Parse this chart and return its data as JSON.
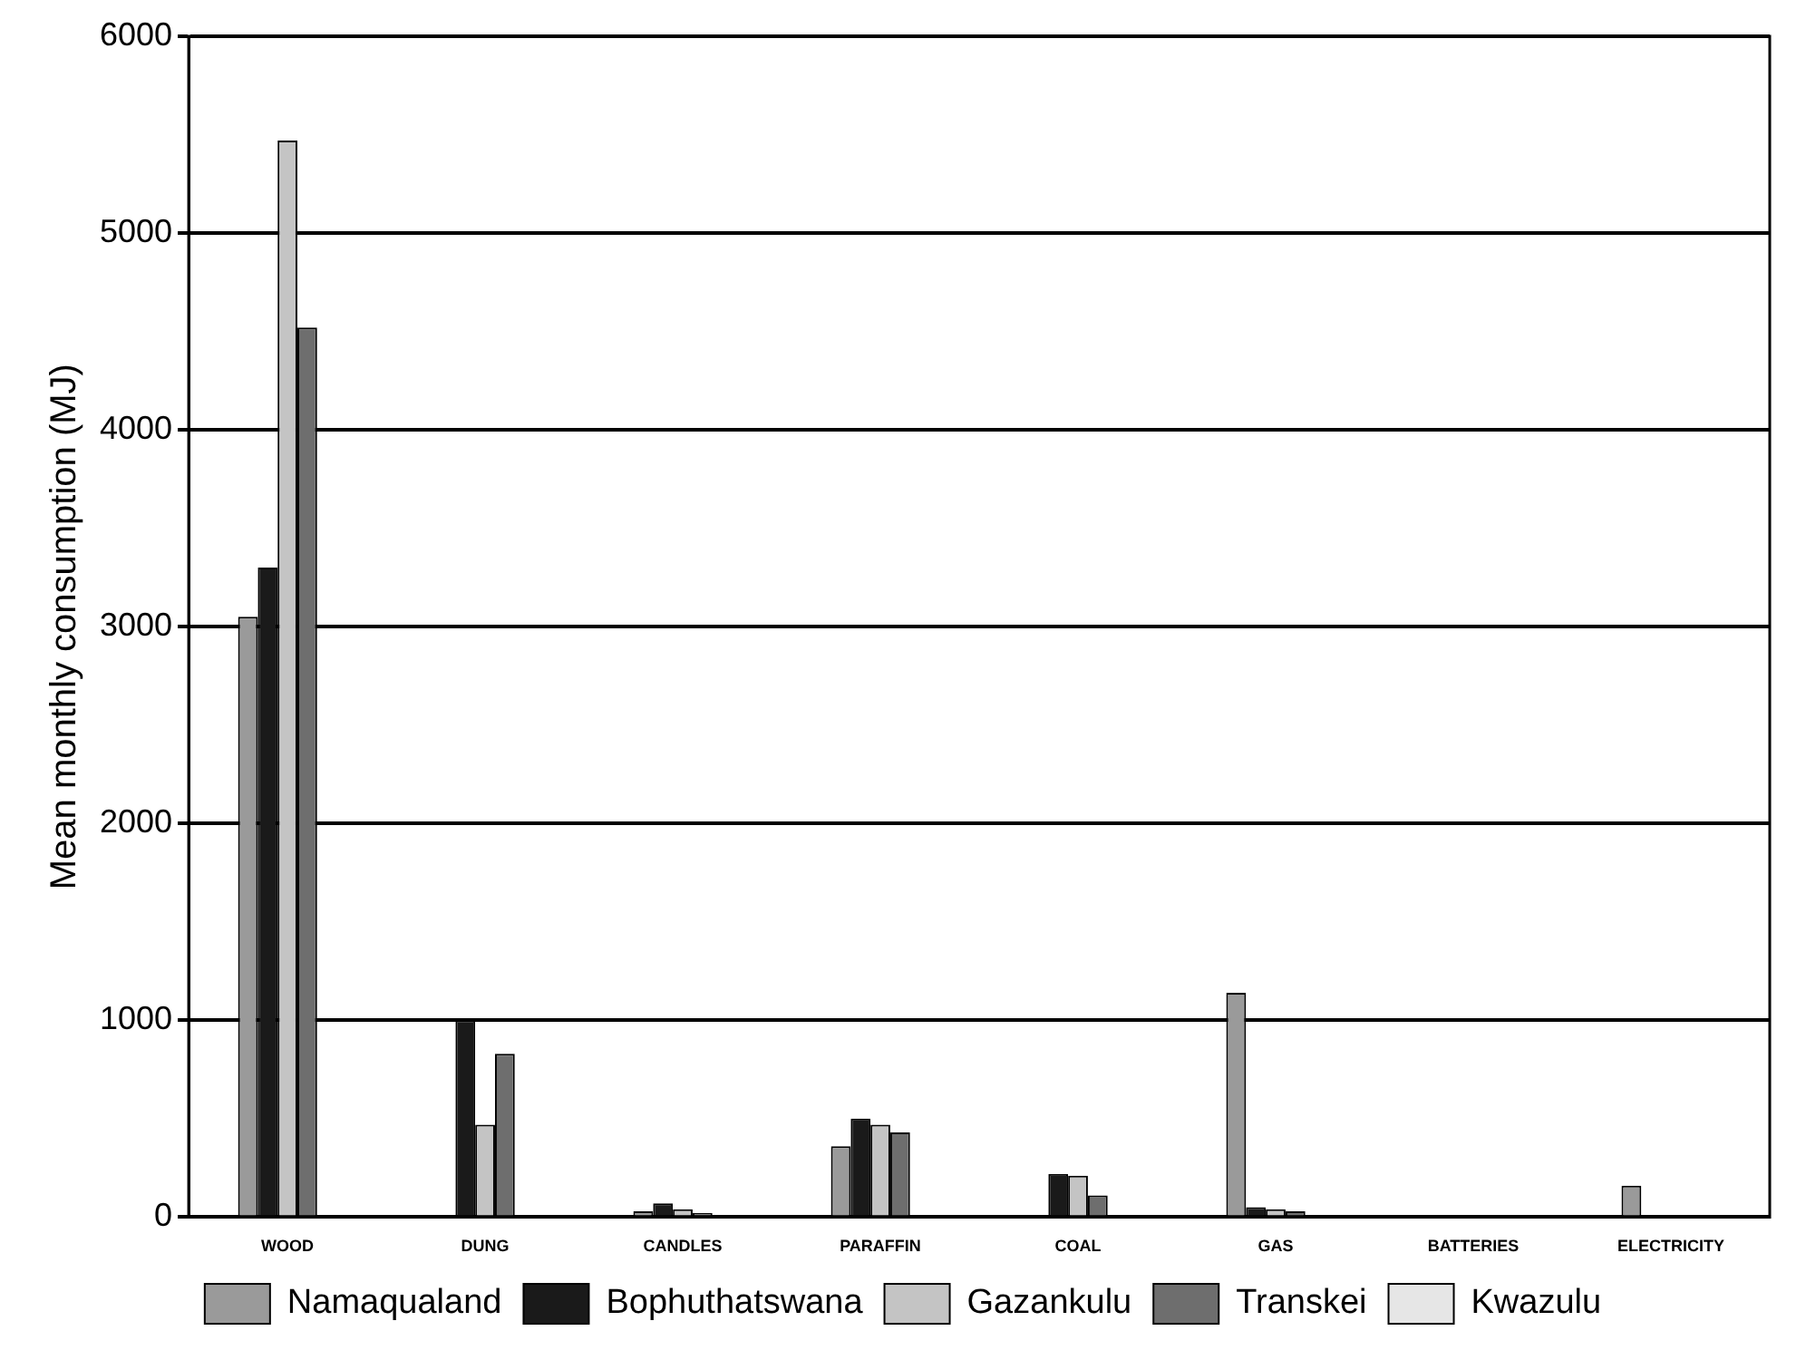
{
  "chart_data": {
    "type": "bar",
    "ylabel": "Mean monthly consumption (MJ)",
    "categories": [
      "WOOD",
      "DUNG",
      "CANDLES",
      "PARAFFIN",
      "COAL",
      "GAS",
      "BATTERIES",
      "ELECTRICITY"
    ],
    "series": [
      {
        "name": "Namaqualand",
        "color": "#9a9a9a",
        "values": [
          3050,
          0,
          30,
          360,
          0,
          1140,
          0,
          160
        ]
      },
      {
        "name": "Bophuthatswana",
        "color": "#1a1a1a",
        "values": [
          3300,
          1000,
          70,
          500,
          220,
          50,
          0,
          0
        ]
      },
      {
        "name": "Gazankulu",
        "color": "#c4c4c4",
        "values": [
          5470,
          470,
          40,
          470,
          210,
          40,
          0,
          0
        ]
      },
      {
        "name": "Transkei",
        "color": "#6e6e6e",
        "values": [
          4520,
          830,
          20,
          430,
          110,
          30,
          0,
          0
        ]
      },
      {
        "name": "Kwazulu",
        "color": "#e6e6e6",
        "values": [
          0,
          0,
          null,
          0,
          0,
          0,
          0,
          0
        ]
      }
    ],
    "ylim": [
      0,
      6000
    ],
    "yticks": [
      0,
      1000,
      2000,
      3000,
      4000,
      5000,
      6000
    ],
    "grid": "y",
    "legend": "bottom"
  }
}
